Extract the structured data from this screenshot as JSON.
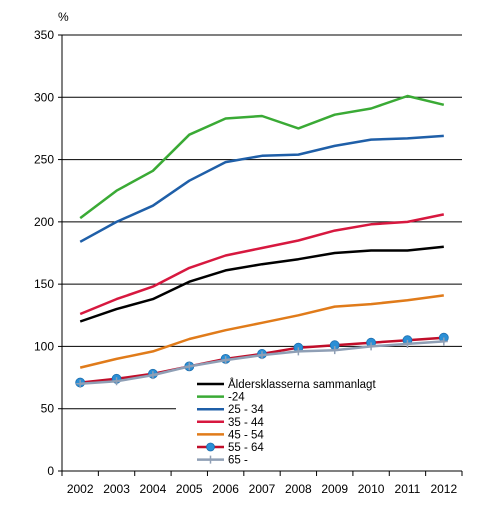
{
  "chart_data": {
    "type": "line",
    "ylabel": "%",
    "ylim": [
      0,
      350
    ],
    "yticks": [
      0,
      50,
      100,
      150,
      200,
      250,
      300,
      350
    ],
    "x": [
      "2002",
      "2003",
      "2004",
      "2005",
      "2006",
      "2007",
      "2008",
      "2009",
      "2010",
      "2011",
      "2012"
    ],
    "grid": "horizontal",
    "legend_position": "bottom-center-inside",
    "series": [
      {
        "name": "Åldersklasserna sammanlagt",
        "color": "#000000",
        "marker": "none",
        "values": [
          120,
          130,
          138,
          152,
          161,
          166,
          170,
          175,
          177,
          177,
          180
        ]
      },
      {
        "name": "-24",
        "color": "#3aaa35",
        "marker": "none",
        "values": [
          203,
          225,
          241,
          270,
          283,
          285,
          275,
          286,
          291,
          301,
          294
        ]
      },
      {
        "name": "25 - 34",
        "color": "#1f5fa8",
        "marker": "none",
        "values": [
          184,
          200,
          213,
          233,
          248,
          253,
          254,
          261,
          266,
          267,
          269
        ]
      },
      {
        "name": "35 - 44",
        "color": "#d7183f",
        "marker": "none",
        "values": [
          126,
          138,
          148,
          163,
          173,
          179,
          185,
          193,
          198,
          200,
          206
        ]
      },
      {
        "name": "45 - 54",
        "color": "#e07b1a",
        "marker": "none",
        "values": [
          83,
          90,
          96,
          106,
          113,
          119,
          125,
          132,
          134,
          137,
          141
        ]
      },
      {
        "name": "55 - 64",
        "color": "#c00e2a",
        "marker": "circle",
        "marker_color": "#2a8fd6",
        "values": [
          71,
          74,
          78,
          84,
          90,
          94,
          99,
          101,
          103,
          105,
          107
        ]
      },
      {
        "name": "65 -",
        "color": "#8f9fb5",
        "marker": "plus",
        "values": [
          70,
          72,
          77,
          84,
          89,
          93,
          96,
          97,
          100,
          102,
          104
        ]
      }
    ]
  }
}
